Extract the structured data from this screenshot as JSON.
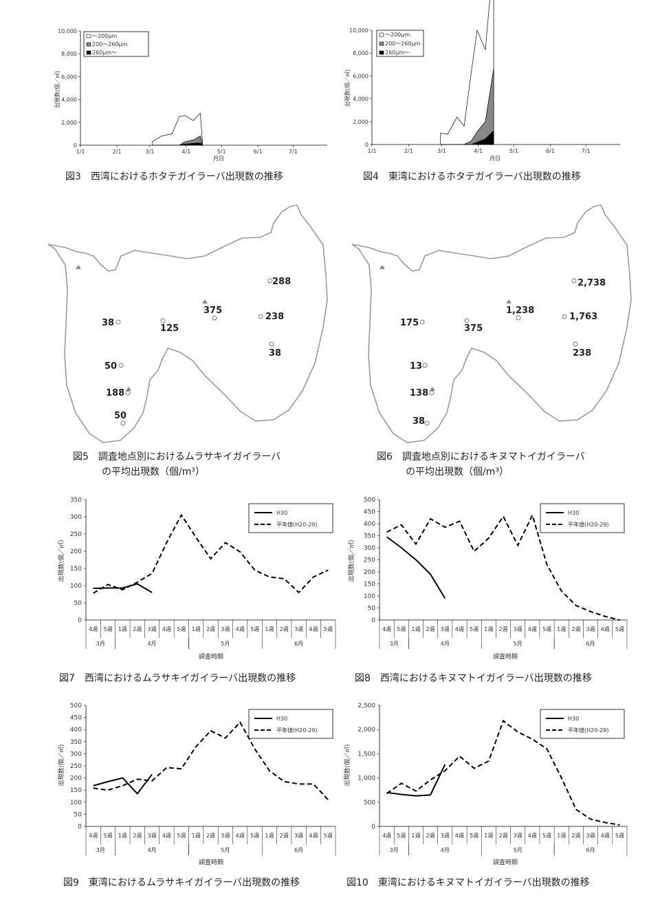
{
  "figures": {
    "fig3": {
      "caption": "図3　西湾におけるホタテガイラーバ出現数の推移",
      "ylabel": "出現数(個／㎥)",
      "xlabel": "月日",
      "yticks": [
        "0",
        "2,000",
        "4,000",
        "6,000",
        "8,000",
        "10,000"
      ],
      "xticks": [
        "1/1",
        "2/1",
        "3/1",
        "4/1",
        "5/1",
        "6/1",
        "7/1"
      ],
      "legend": [
        "～200μm",
        "200～260μm",
        "260μm～"
      ]
    },
    "fig4": {
      "caption": "図4　東湾におけるホタテガイラーバ出現数の推移",
      "ylabel": "出現数(個／㎥)",
      "xlabel": "月日",
      "yticks": [
        "0",
        "2,000",
        "4,000",
        "6,000",
        "8,000",
        "10,000"
      ],
      "xticks": [
        "1/1",
        "2/1",
        "3/1",
        "4/1",
        "5/1",
        "6/1",
        "7/1"
      ],
      "legend": [
        "～200μm",
        "200～260μm",
        "260μm～"
      ]
    },
    "fig5": {
      "caption_line1": "図5　調査地点別におけるムラサキイガイラーバ",
      "caption_line2": "の平均出現数（個/m³）",
      "labels": [
        "288",
        "375",
        "238",
        "38",
        "125",
        "38",
        "50",
        "188",
        "50"
      ]
    },
    "fig6": {
      "caption_line1": "図6　調査地点別におけるキヌマトイガイラーバ",
      "caption_line2": "の平均出現数（個/m³）",
      "labels": [
        "2,738",
        "1,238",
        "1,763",
        "175",
        "375",
        "238",
        "13",
        "138",
        "38"
      ]
    },
    "fig7": {
      "caption": "図7　西湾におけるムラサキイガイラーバ出現数の推移",
      "ylabel": "出現数(個／㎥)",
      "xlabel": "調査時期",
      "yticks": [
        "0",
        "50",
        "100",
        "150",
        "200",
        "250",
        "300",
        "350"
      ],
      "legend": [
        "H30",
        "平年値(H20-29)"
      ]
    },
    "fig8": {
      "caption": "図8　西湾におけるキヌマトイガイラーバ出現数の推移",
      "ylabel": "出現数(個／㎥)",
      "xlabel": "調査時期",
      "yticks": [
        "0",
        "50",
        "100",
        "150",
        "200",
        "250",
        "300",
        "350",
        "400",
        "450",
        "500"
      ],
      "legend": [
        "H30",
        "平年値(H20-29)"
      ]
    },
    "fig9": {
      "caption": "図9　東湾におけるムラサキイガイラーバ出現数の推移",
      "ylabel": "出現数(個／㎥)",
      "xlabel": "調査時期",
      "yticks": [
        "0",
        "50",
        "100",
        "150",
        "200",
        "250",
        "300",
        "350",
        "400",
        "450",
        "500"
      ],
      "legend": [
        "H30",
        "平年値(H20-29)"
      ]
    },
    "fig10": {
      "caption": "図10　東湾におけるキヌマトイガイラーバ出現数の推移",
      "ylabel": "出現数(個／㎥)",
      "xlabel": "調査時期",
      "yticks": [
        "0",
        "500",
        "1,000",
        "1,500",
        "2,000",
        "2,500"
      ],
      "legend": [
        "H30",
        "平年値(H20-29)"
      ]
    }
  },
  "week_labels": [
    "4週",
    "5週",
    "1週",
    "2週",
    "3週",
    "4週",
    "5週",
    "1週",
    "2週",
    "3週",
    "4週",
    "5週",
    "1週",
    "2週",
    "3週",
    "4週",
    "5週"
  ],
  "month_labels": [
    "3月",
    "4月",
    "5月",
    "6月"
  ],
  "chart_data": [
    {
      "type": "area",
      "id": "fig3",
      "xlim_days": [
        0,
        210
      ],
      "ylim": [
        0,
        10000
      ],
      "x_dates": [
        "3/3",
        "3/11",
        "3/20",
        "3/26",
        "3/31",
        "4/7",
        "4/13",
        "4/15"
      ],
      "series": [
        {
          "name": "～200μm",
          "values": [
            300,
            800,
            1000,
            2500,
            2300,
            1700,
            2000,
            0
          ]
        },
        {
          "name": "200～260μm",
          "values": [
            0,
            0,
            0,
            0,
            200,
            300,
            600,
            0
          ]
        },
        {
          "name": "260μm～",
          "values": [
            0,
            0,
            0,
            0,
            100,
            150,
            200,
            0
          ]
        }
      ]
    },
    {
      "type": "area",
      "id": "fig4",
      "xlim_days": [
        0,
        210
      ],
      "ylim": [
        0,
        10000
      ],
      "x_dates": [
        "2/28",
        "3/6",
        "3/14",
        "3/20",
        "3/26",
        "3/31",
        "4/7",
        "4/14",
        "4/14"
      ],
      "series": [
        {
          "name": "～200μm",
          "values": [
            1000,
            900,
            2400,
            1600,
            6000,
            8900,
            6300,
            10000,
            0
          ]
        },
        {
          "name": "200～260μm",
          "values": [
            0,
            0,
            0,
            0,
            300,
            900,
            1500,
            5400,
            0
          ]
        },
        {
          "name": "260μm～",
          "values": [
            0,
            0,
            0,
            0,
            0,
            200,
            500,
            1200,
            0
          ]
        }
      ]
    },
    {
      "type": "line",
      "id": "fig7",
      "ylim": [
        0,
        350
      ],
      "series": [
        {
          "name": "H30",
          "values": [
            92,
            93,
            93,
            105,
            80,
            null,
            null,
            null,
            null,
            null,
            null,
            null,
            null,
            null,
            null,
            null,
            null
          ]
        },
        {
          "name": "平年値(H20-29)",
          "values": [
            78,
            103,
            88,
            110,
            135,
            225,
            305,
            240,
            178,
            225,
            198,
            145,
            125,
            120,
            80,
            125,
            145
          ]
        }
      ]
    },
    {
      "type": "line",
      "id": "fig8",
      "ylim": [
        0,
        500
      ],
      "series": [
        {
          "name": "H30",
          "values": [
            345,
            300,
            250,
            190,
            90,
            null,
            null,
            null,
            null,
            null,
            null,
            null,
            null,
            null,
            null,
            null,
            null
          ]
        },
        {
          "name": "平年値(H20-29)",
          "values": [
            365,
            395,
            315,
            420,
            385,
            410,
            285,
            340,
            430,
            310,
            435,
            230,
            120,
            60,
            35,
            15,
            0
          ]
        }
      ]
    },
    {
      "type": "line",
      "id": "fig9",
      "ylim": [
        0,
        500
      ],
      "series": [
        {
          "name": "H30",
          "values": [
            168,
            185,
            200,
            135,
            215,
            null,
            null,
            null,
            null,
            null,
            null,
            null,
            null,
            null,
            null,
            null,
            null
          ]
        },
        {
          "name": "平年値(H20-29)",
          "values": [
            158,
            150,
            168,
            195,
            188,
            243,
            238,
            330,
            395,
            365,
            430,
            320,
            230,
            185,
            175,
            175,
            110
          ]
        }
      ]
    },
    {
      "type": "line",
      "id": "fig10",
      "ylim": [
        0,
        2500
      ],
      "series": [
        {
          "name": "H30",
          "values": [
            700,
            660,
            630,
            650,
            1280,
            null,
            null,
            null,
            null,
            null,
            null,
            null,
            null,
            null,
            null,
            null,
            null
          ]
        },
        {
          "name": "平年値(H20-29)",
          "values": [
            680,
            890,
            730,
            960,
            1150,
            1450,
            1200,
            1350,
            2180,
            1950,
            1800,
            1600,
            1000,
            350,
            150,
            80,
            30
          ]
        }
      ]
    }
  ]
}
